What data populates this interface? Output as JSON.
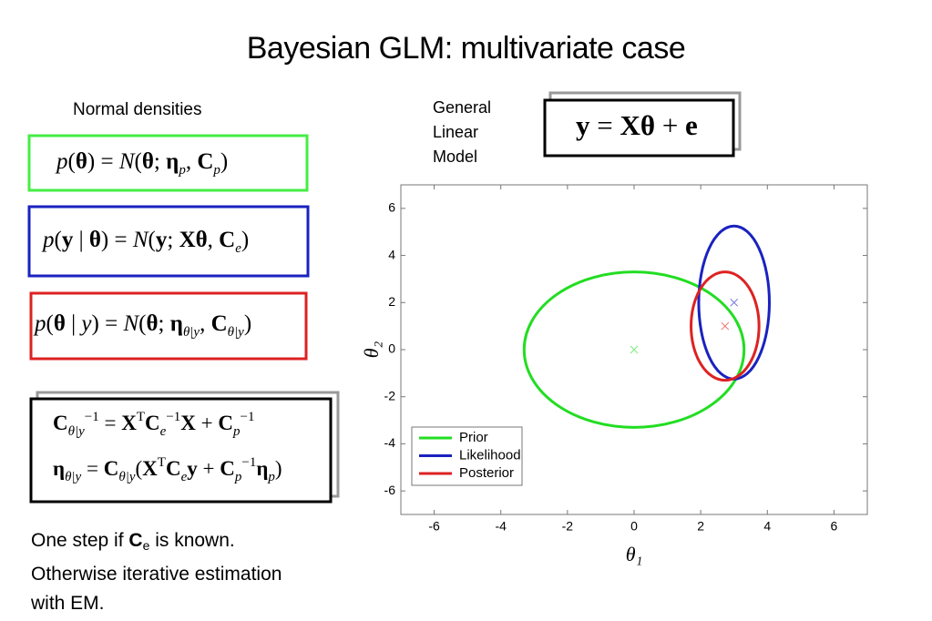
{
  "header": {
    "title": "Bayesian GLM: multivariate case"
  },
  "left": {
    "heading": "Normal densities",
    "equations": [
      [
        {
          "i": "p"
        },
        "(",
        {
          "b": "θ"
        },
        ") = ",
        {
          "i": "N"
        },
        "(",
        {
          "b": "θ"
        },
        "; ",
        {
          "b": "η"
        },
        {
          "sub": "p"
        },
        ", ",
        {
          "b": "C"
        },
        {
          "sub": "p"
        },
        ")"
      ],
      [
        {
          "i": "p"
        },
        "(",
        {
          "b": "y"
        },
        " | ",
        {
          "b": "θ"
        },
        ") = ",
        {
          "i": "N"
        },
        "(",
        {
          "b": "y"
        },
        "; ",
        {
          "b": "Xθ"
        },
        ", ",
        {
          "b": "C"
        },
        {
          "sub": "e"
        },
        ")"
      ],
      [
        {
          "i": "p"
        },
        "(",
        {
          "b": "θ"
        },
        " | ",
        {
          "i": "y"
        },
        ") = ",
        {
          "i": "N"
        },
        "(",
        {
          "b": "θ"
        },
        "; ",
        {
          "b": "η"
        },
        {
          "sub": "θ|y"
        },
        ", ",
        {
          "b": "C"
        },
        {
          "sub": "θ|y"
        },
        ")"
      ]
    ],
    "update": [
      [
        {
          "b": "C"
        },
        {
          "sub": "θ|y"
        },
        {
          "sup": "−1"
        },
        " = ",
        {
          "b": "X"
        },
        {
          "sup": "T"
        },
        {
          "b": "C"
        },
        {
          "sub": "e"
        },
        {
          "sup": "−1"
        },
        {
          "b": "X"
        },
        " + ",
        {
          "b": "C"
        },
        {
          "sub": "p"
        },
        {
          "sup": "−1"
        }
      ],
      [
        {
          "b": "η"
        },
        {
          "sub": "θ|y"
        },
        " = ",
        {
          "b": "C"
        },
        {
          "sub": "θ|y"
        },
        "(",
        {
          "b": "X"
        },
        {
          "sup": "T"
        },
        {
          "b": "C"
        },
        {
          "sub": "e"
        },
        {
          "b": "y"
        },
        " + ",
        {
          "b": "C"
        },
        {
          "sub": "p"
        },
        {
          "sup": "−1"
        },
        {
          "b": "η"
        },
        {
          "sub": "p"
        },
        ")"
      ]
    ],
    "note": [
      [
        "One step if ",
        {
          "b": "C"
        },
        {
          "sub": "e"
        },
        " is known."
      ],
      [
        "Otherwise iterative estimation"
      ],
      [
        "with EM."
      ]
    ]
  },
  "glm": {
    "label": [
      "General",
      "Linear",
      "Model"
    ],
    "equation": [
      {
        "b": "y"
      },
      " = ",
      {
        "b": "Xθ"
      },
      " + ",
      {
        "b": "e"
      }
    ]
  },
  "chart_data": {
    "type": "ellipse",
    "xlabel": "θ₁",
    "ylabel": "θ₂",
    "xlim": [
      -7,
      7
    ],
    "ylim": [
      -7,
      7
    ],
    "xticks": [
      -6,
      -4,
      -2,
      0,
      2,
      4,
      6
    ],
    "yticks": [
      -6,
      -4,
      -2,
      0,
      2,
      4,
      6
    ],
    "legend": "lower left",
    "series": [
      {
        "name": "Prior",
        "color": "#22dd22",
        "center": [
          0,
          0
        ],
        "radii": [
          3.3,
          3.3
        ]
      },
      {
        "name": "Likelihood",
        "color": "#1a22c0",
        "center": [
          3,
          2
        ],
        "radii": [
          1.06,
          3.25
        ]
      },
      {
        "name": "Posterior",
        "color": "#dd2222",
        "center": [
          2.73,
          1
        ],
        "radii": [
          1.02,
          2.3
        ]
      }
    ]
  }
}
